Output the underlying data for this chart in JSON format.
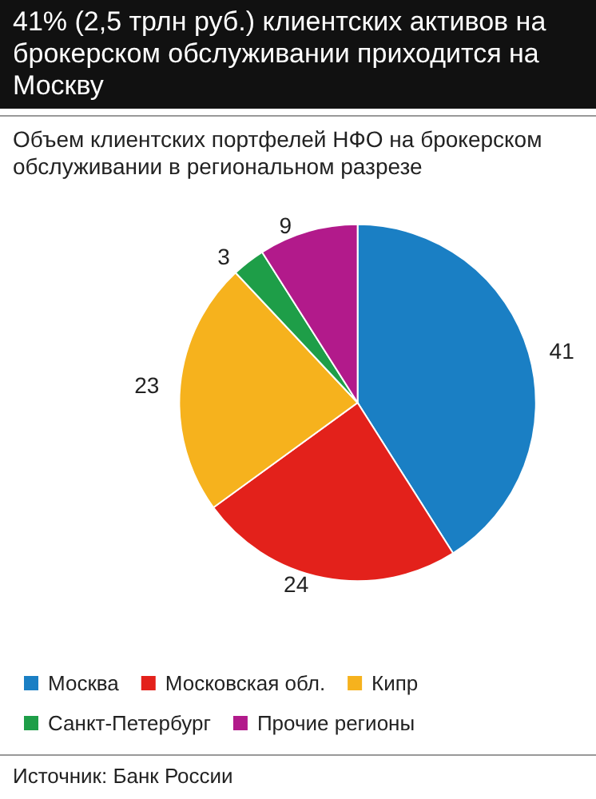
{
  "chart_data": {
    "type": "pie",
    "title": "41% (2,5 трлн руб.) клиентских активов на брокерском обслуживании приходится на Москву",
    "subtitle": "Объем клиентских портфелей НФО на брокерском обслуживании в региональном разрезе",
    "categories": [
      "Москва",
      "Московская обл.",
      "Кипр",
      "Санкт-Петербург",
      "Прочие регионы"
    ],
    "values": [
      41,
      24,
      23,
      3,
      9
    ],
    "colors": [
      "#1a7fc4",
      "#e3211b",
      "#f6b21d",
      "#1e9e48",
      "#b21a8b"
    ],
    "data_labels": true,
    "legend": "bottom",
    "annotations": [
      "Источник: Банк России"
    ]
  }
}
